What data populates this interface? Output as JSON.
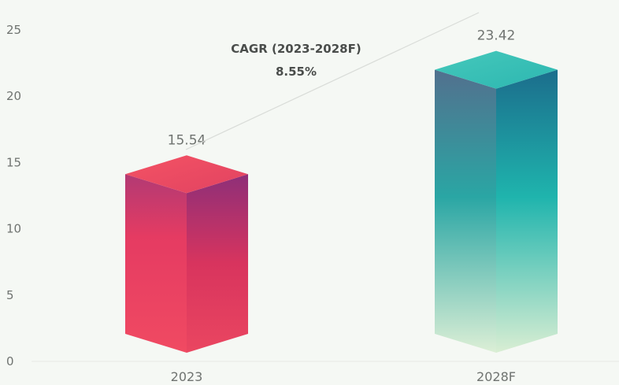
{
  "chart_data": {
    "type": "bar",
    "categories": [
      "2023",
      "2028F"
    ],
    "values": [
      15.54,
      23.42
    ],
    "value_labels": [
      "15.54",
      "23.42"
    ],
    "title": "",
    "xlabel": "",
    "ylabel": "",
    "ylim": [
      0,
      25
    ],
    "yticks": [
      "0",
      "5",
      "10",
      "15",
      "20",
      "25"
    ],
    "grid": false,
    "annotation": {
      "line1": "CAGR (2023-2028F)",
      "line2": "8.55%"
    },
    "colors": {
      "bar_2023": [
        "#e8365a",
        "#a8336e",
        "#f0506a"
      ],
      "bar_2028F": [
        "#2bbfb3",
        "#1a6f8a",
        "#d6ecd2"
      ]
    }
  }
}
